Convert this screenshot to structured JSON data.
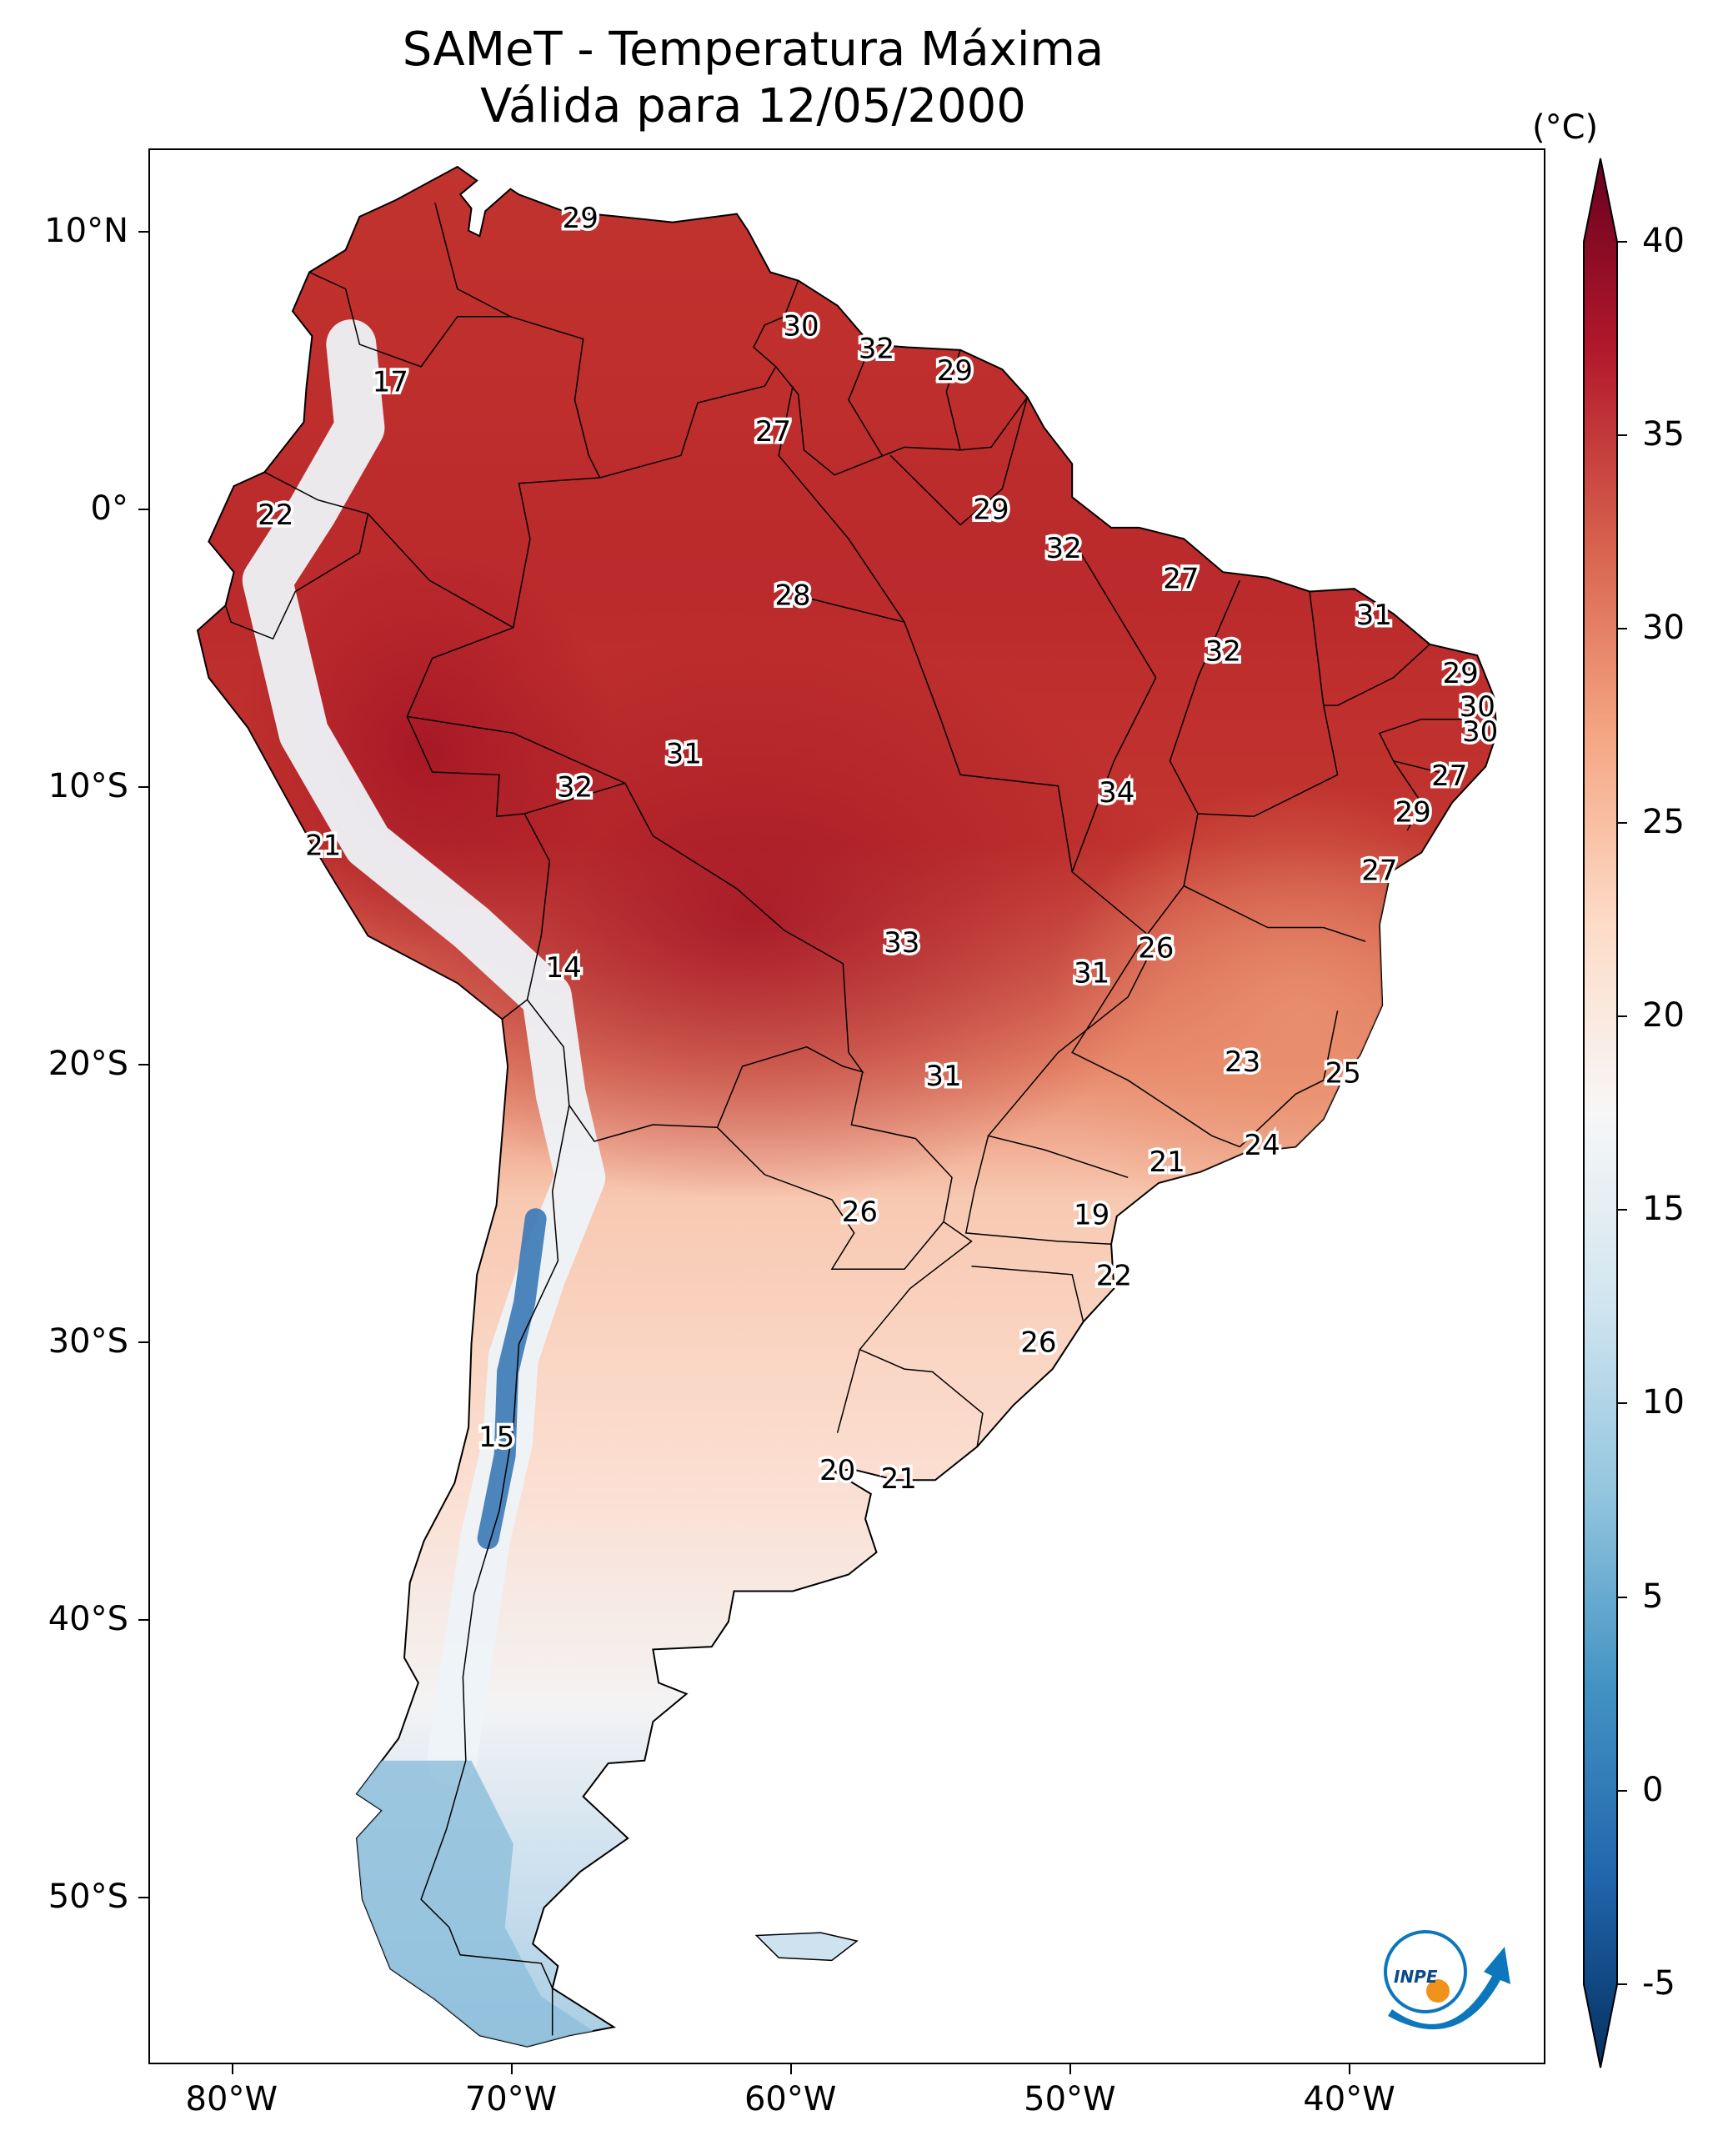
{
  "title": {
    "line1": "SAMeT - Temperatura Máxima",
    "line2": "Válida para 12/05/2000"
  },
  "axes": {
    "lat_ticks": [
      {
        "label": "10°N",
        "lat": 10
      },
      {
        "label": "0°",
        "lat": 0
      },
      {
        "label": "10°S",
        "lat": -10
      },
      {
        "label": "20°S",
        "lat": -20
      },
      {
        "label": "30°S",
        "lat": -30
      },
      {
        "label": "40°S",
        "lat": -40
      },
      {
        "label": "50°S",
        "lat": -50
      }
    ],
    "lon_ticks": [
      {
        "label": "80°W",
        "lon": -80
      },
      {
        "label": "70°W",
        "lon": -70
      },
      {
        "label": "60°W",
        "lon": -60
      },
      {
        "label": "50°W",
        "lon": -50
      },
      {
        "label": "40°W",
        "lon": -40
      }
    ],
    "lon_range": [
      -83,
      -33
    ],
    "lat_range": [
      -56,
      13
    ]
  },
  "colorbar": {
    "unit": "(°C)",
    "range": [
      -5,
      40
    ],
    "ticks": [
      "40",
      "35",
      "30",
      "25",
      "20",
      "15",
      "10",
      "5",
      "0",
      "-5"
    ],
    "colors": [
      "#053061",
      "#2166ac",
      "#4393c3",
      "#92c5de",
      "#d1e5f0",
      "#f7f7f7",
      "#fddbc7",
      "#f4a582",
      "#d6604d",
      "#b2182b",
      "#67001f"
    ]
  },
  "station_values": [
    {
      "value": "29",
      "lon": -67.6,
      "lat": 10.5
    },
    {
      "value": "30",
      "lon": -59.7,
      "lat": 6.6
    },
    {
      "value": "32",
      "lon": -57.0,
      "lat": 5.8
    },
    {
      "value": "29",
      "lon": -54.2,
      "lat": 5.0
    },
    {
      "value": "17",
      "lon": -74.4,
      "lat": 4.6
    },
    {
      "value": "27",
      "lon": -60.7,
      "lat": 2.8
    },
    {
      "value": "22",
      "lon": -78.5,
      "lat": -0.2
    },
    {
      "value": "29",
      "lon": -52.9,
      "lat": 0.0
    },
    {
      "value": "32",
      "lon": -50.3,
      "lat": -1.4
    },
    {
      "value": "28",
      "lon": -60.0,
      "lat": -3.1
    },
    {
      "value": "27",
      "lon": -46.1,
      "lat": -2.5
    },
    {
      "value": "31",
      "lon": -39.2,
      "lat": -3.8
    },
    {
      "value": "32",
      "lon": -44.6,
      "lat": -5.1
    },
    {
      "value": "29",
      "lon": -36.1,
      "lat": -5.9
    },
    {
      "value": "30",
      "lon": -35.5,
      "lat": -7.1
    },
    {
      "value": "30",
      "lon": -35.4,
      "lat": -8.0
    },
    {
      "value": "31",
      "lon": -63.9,
      "lat": -8.8
    },
    {
      "value": "27",
      "lon": -36.5,
      "lat": -9.6
    },
    {
      "value": "32",
      "lon": -67.8,
      "lat": -10.0
    },
    {
      "value": "34",
      "lon": -48.4,
      "lat": -10.2
    },
    {
      "value": "29",
      "lon": -37.8,
      "lat": -10.9
    },
    {
      "value": "21",
      "lon": -76.8,
      "lat": -12.1
    },
    {
      "value": "27",
      "lon": -39.0,
      "lat": -13.0
    },
    {
      "value": "26",
      "lon": -47.0,
      "lat": -15.8
    },
    {
      "value": "33",
      "lon": -56.1,
      "lat": -15.6
    },
    {
      "value": "14",
      "lon": -68.2,
      "lat": -16.5
    },
    {
      "value": "31",
      "lon": -49.3,
      "lat": -16.7
    },
    {
      "value": "23",
      "lon": -43.9,
      "lat": -19.9
    },
    {
      "value": "25",
      "lon": -40.3,
      "lat": -20.3
    },
    {
      "value": "31",
      "lon": -54.6,
      "lat": -20.4
    },
    {
      "value": "24",
      "lon": -43.2,
      "lat": -22.9
    },
    {
      "value": "21",
      "lon": -46.6,
      "lat": -23.5
    },
    {
      "value": "26",
      "lon": -57.6,
      "lat": -25.3
    },
    {
      "value": "19",
      "lon": -49.3,
      "lat": -25.4
    },
    {
      "value": "22",
      "lon": -48.5,
      "lat": -27.6
    },
    {
      "value": "26",
      "lon": -51.2,
      "lat": -30.0
    },
    {
      "value": "15",
      "lon": -70.6,
      "lat": -33.4
    },
    {
      "value": "20",
      "lon": -58.4,
      "lat": -34.6
    },
    {
      "value": "21",
      "lon": -56.2,
      "lat": -34.9
    }
  ],
  "logo": {
    "text": "INPE"
  }
}
